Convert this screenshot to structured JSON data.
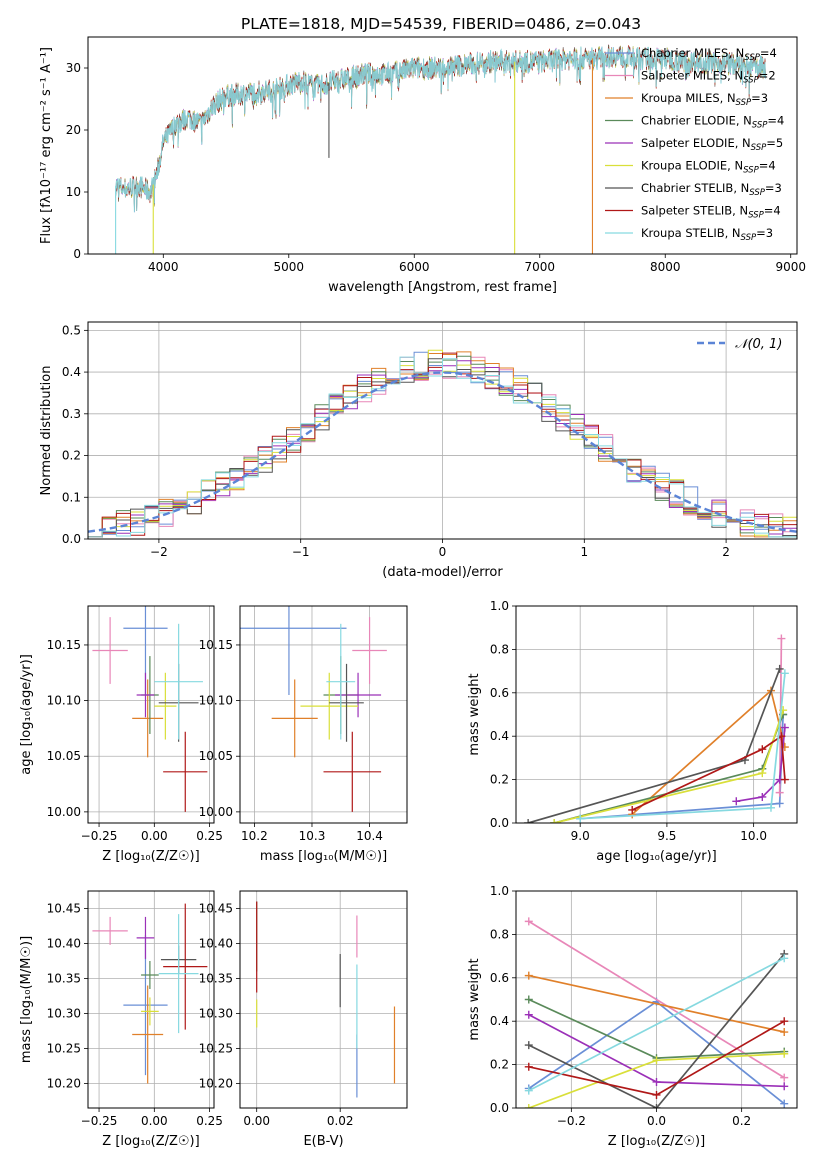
{
  "figure_title": "PLATE=1818, MJD=54539, FIBERID=0486, z=0.043",
  "colors": {
    "Chabrier MILES": "#6a8fd6",
    "Salpeter MILES": "#e887b8",
    "Kroupa MILES": "#e0802a",
    "Chabrier ELODIE": "#5a8a5a",
    "Salpeter ELODIE": "#9b30b8",
    "Kroupa ELODIE": "#d9df3a",
    "Chabrier STELIB": "#555555",
    "Salpeter STELIB": "#b01818",
    "Kroupa STELIB": "#86d9e0",
    "gaussian": "#5b84d6"
  },
  "chart_data": [
    {
      "id": "spectrum",
      "type": "line",
      "xlabel": "wavelength [Angstrom, rest frame]",
      "ylabel": "Flux [fλ10⁻¹⁷ erg cm⁻² s⁻¹ A⁻¹]",
      "xlim": [
        3400,
        9050
      ],
      "ylim": [
        0,
        35
      ],
      "xticks": [
        4000,
        5000,
        6000,
        7000,
        8000,
        9000
      ],
      "yticks": [
        0,
        10,
        20,
        30
      ],
      "grid": false,
      "legend_position": "top-right",
      "legend": [
        {
          "label": "Chabrier MILES, N",
          "sub": "SSP",
          "value": "=4"
        },
        {
          "label": "Salpeter MILES, N",
          "sub": "SSP",
          "value": "=2"
        },
        {
          "label": "Kroupa MILES, N",
          "sub": "SSP",
          "value": "=3"
        },
        {
          "label": "Chabrier ELODIE, N",
          "sub": "SSP",
          "value": "=4"
        },
        {
          "label": "Salpeter ELODIE, N",
          "sub": "SSP",
          "value": "=5"
        },
        {
          "label": "Kroupa ELODIE, N",
          "sub": "SSP",
          "value": "=4"
        },
        {
          "label": "Chabrier STELIB, N",
          "sub": "SSP",
          "value": "=3"
        },
        {
          "label": "Salpeter STELIB, N",
          "sub": "SSP",
          "value": "=4"
        },
        {
          "label": "Kroupa STELIB, N",
          "sub": "SSP",
          "value": "=3"
        }
      ],
      "continuum": {
        "x": [
          3620,
          3700,
          3800,
          3900,
          3950,
          4000,
          4100,
          4200,
          4300,
          4400,
          4500,
          4700,
          4900,
          5100,
          5200,
          5400,
          5600,
          5800,
          6000,
          6200,
          6400,
          6600,
          6800,
          7000,
          7200,
          7400,
          7600,
          7800,
          8000,
          8200,
          8400,
          8600,
          8800
        ],
        "y": [
          11,
          10.5,
          11,
          10,
          13,
          18,
          21,
          22,
          21,
          24,
          25.5,
          26,
          26.5,
          28,
          27,
          28,
          29,
          29,
          30,
          30,
          30.5,
          31,
          31,
          31,
          31.5,
          31.5,
          32,
          31.5,
          31.5,
          31,
          31,
          30.5,
          30
        ]
      },
      "spikes": [
        {
          "x": 3620,
          "y": 0,
          "color": "Kroupa STELIB"
        },
        {
          "x": 3920,
          "y": 0,
          "color": "Kroupa ELODIE"
        },
        {
          "x": 5320,
          "y": 15.5,
          "color": "Chabrier STELIB"
        },
        {
          "x": 6800,
          "y": 0,
          "color": "Kroupa ELODIE"
        },
        {
          "x": 7420,
          "y": 0,
          "color": "Kroupa MILES"
        }
      ]
    },
    {
      "id": "residuals",
      "type": "histogram",
      "xlabel": "(data-model)/error",
      "ylabel": "Normed distribution",
      "xlim": [
        -2.5,
        2.5
      ],
      "ylim": [
        0,
        0.52
      ],
      "xticks": [
        -2,
        -1,
        0,
        1,
        2
      ],
      "yticks": [
        0.0,
        0.1,
        0.2,
        0.3,
        0.4,
        0.5
      ],
      "grid": true,
      "legend_position": "top-right",
      "legend_label": "𝒩(0, 1)",
      "bin_start": -2.5,
      "bin_width": 0.1
    },
    {
      "id": "age_vs_Z",
      "type": "errorbar",
      "xlabel": "Z [log₁₀(Z/Z☉)]",
      "ylabel": "age  [log₁₀(age/yr)]",
      "xlim": [
        -0.3,
        0.27
      ],
      "ylim": [
        9.99,
        10.185
      ],
      "xticks": [
        -0.25,
        0.0,
        0.25
      ],
      "xticklabels": [
        "−0.25",
        "0.00",
        "0.25"
      ],
      "yticks": [
        10.0,
        10.05,
        10.1,
        10.15
      ],
      "grid": true,
      "points": [
        {
          "series": "Chabrier MILES",
          "x": -0.04,
          "xerr": 0.1,
          "y": 10.165,
          "yerr": 0.06
        },
        {
          "series": "Salpeter MILES",
          "x": -0.2,
          "xerr": 0.08,
          "y": 10.145,
          "yerr": 0.03
        },
        {
          "series": "Kroupa MILES",
          "x": -0.03,
          "xerr": 0.07,
          "y": 10.084,
          "yerr": 0.035
        },
        {
          "series": "Chabrier ELODIE",
          "x": -0.02,
          "xerr": 0.04,
          "y": 10.105,
          "yerr": 0.035
        },
        {
          "series": "Salpeter ELODIE",
          "x": -0.04,
          "xerr": 0.04,
          "y": 10.105,
          "yerr": 0.02
        },
        {
          "series": "Kroupa ELODIE",
          "x": 0.05,
          "xerr": 0.05,
          "y": 10.095,
          "yerr": 0.03
        },
        {
          "series": "Chabrier STELIB",
          "x": 0.11,
          "xerr": 0.09,
          "y": 10.098,
          "yerr": 0.035
        },
        {
          "series": "Salpeter STELIB",
          "x": 0.14,
          "xerr": 0.1,
          "y": 10.036,
          "yerr": 0.036
        },
        {
          "series": "Kroupa STELIB",
          "x": 0.11,
          "xerr": 0.11,
          "y": 10.117,
          "yerr": 0.052
        }
      ]
    },
    {
      "id": "age_vs_mass",
      "type": "errorbar",
      "xlabel": "mass [log₁₀(M/M☉)]",
      "ylabel": "",
      "xlim": [
        10.175,
        10.465
      ],
      "ylim": [
        9.99,
        10.185
      ],
      "xticks": [
        10.2,
        10.3,
        10.4
      ],
      "xticklabels": [
        "10.2",
        "10.3",
        "10.4"
      ],
      "yticks": [
        10.0,
        10.05,
        10.1,
        10.15
      ],
      "grid": true,
      "points": [
        {
          "series": "Chabrier MILES",
          "x": 10.26,
          "xerr": 0.1,
          "y": 10.165,
          "yerr": 0.06
        },
        {
          "series": "Salpeter MILES",
          "x": 10.4,
          "xerr": 0.03,
          "y": 10.145,
          "yerr": 0.03
        },
        {
          "series": "Kroupa MILES",
          "x": 10.27,
          "xerr": 0.04,
          "y": 10.084,
          "yerr": 0.035
        },
        {
          "series": "Chabrier ELODIE",
          "x": 10.35,
          "xerr": 0.03,
          "y": 10.105,
          "yerr": 0.035
        },
        {
          "series": "Salpeter ELODIE",
          "x": 10.38,
          "xerr": 0.04,
          "y": 10.105,
          "yerr": 0.02
        },
        {
          "series": "Kroupa ELODIE",
          "x": 10.33,
          "xerr": 0.05,
          "y": 10.095,
          "yerr": 0.03
        },
        {
          "series": "Chabrier STELIB",
          "x": 10.36,
          "xerr": 0.03,
          "y": 10.098,
          "yerr": 0.035
        },
        {
          "series": "Salpeter STELIB",
          "x": 10.37,
          "xerr": 0.05,
          "y": 10.036,
          "yerr": 0.036
        },
        {
          "series": "Kroupa STELIB",
          "x": 10.35,
          "xerr": 0.025,
          "y": 10.117,
          "yerr": 0.052
        }
      ]
    },
    {
      "id": "weight_vs_age",
      "type": "line",
      "xlabel": "age  [log₁₀(age/yr)]",
      "ylabel": "mass weight",
      "xlim": [
        8.63,
        10.25
      ],
      "ylim": [
        0,
        1
      ],
      "xticks": [
        9.0,
        9.5,
        10.0
      ],
      "xticklabels": [
        "9.0",
        "9.5",
        "10.0"
      ],
      "yticks": [
        0.0,
        0.2,
        0.4,
        0.6,
        0.8,
        1.0
      ],
      "grid": true,
      "series": [
        {
          "name": "Chabrier MILES",
          "x": [
            9.0,
            10.15,
            10.17
          ],
          "y": [
            0.02,
            0.09,
            0.5
          ]
        },
        {
          "name": "Salpeter MILES",
          "x": [
            10.15,
            10.16
          ],
          "y": [
            0.14,
            0.85
          ]
        },
        {
          "name": "Kroupa MILES",
          "x": [
            9.3,
            10.1,
            10.18
          ],
          "y": [
            0.04,
            0.61,
            0.35
          ]
        },
        {
          "name": "Chabrier ELODIE",
          "x": [
            8.85,
            10.05,
            10.17
          ],
          "y": [
            0.0,
            0.25,
            0.5
          ]
        },
        {
          "name": "Salpeter ELODIE",
          "x": [
            9.9,
            10.05,
            10.15,
            10.18
          ],
          "y": [
            0.1,
            0.12,
            0.2,
            0.44
          ]
        },
        {
          "name": "Kroupa ELODIE",
          "x": [
            8.85,
            10.05,
            10.17
          ],
          "y": [
            0.0,
            0.23,
            0.52
          ]
        },
        {
          "name": "Chabrier STELIB",
          "x": [
            8.7,
            9.95,
            10.15
          ],
          "y": [
            0.0,
            0.29,
            0.71
          ]
        },
        {
          "name": "Salpeter STELIB",
          "x": [
            9.3,
            10.05,
            10.16,
            10.18
          ],
          "y": [
            0.06,
            0.34,
            0.4,
            0.2
          ]
        },
        {
          "name": "Kroupa STELIB",
          "x": [
            9.0,
            10.1,
            10.18
          ],
          "y": [
            0.02,
            0.07,
            0.69
          ]
        }
      ]
    },
    {
      "id": "mass_vs_Z",
      "type": "errorbar",
      "xlabel": "Z [log₁₀(Z/Z☉)]",
      "ylabel": "mass [log₁₀(M/M☉)]",
      "xlim": [
        -0.3,
        0.27
      ],
      "ylim": [
        10.165,
        10.475
      ],
      "xticks": [
        -0.25,
        0.0,
        0.25
      ],
      "xticklabels": [
        "−0.25",
        "0.00",
        "0.25"
      ],
      "yticks": [
        10.2,
        10.25,
        10.3,
        10.35,
        10.4,
        10.45
      ],
      "grid": true,
      "points": [
        {
          "series": "Chabrier MILES",
          "x": -0.04,
          "xerr": 0.1,
          "y": 10.312,
          "yerr": 0.1
        },
        {
          "series": "Salpeter MILES",
          "x": -0.2,
          "xerr": 0.08,
          "y": 10.418,
          "yerr": 0.02
        },
        {
          "series": "Kroupa MILES",
          "x": -0.03,
          "xerr": 0.07,
          "y": 10.27,
          "yerr": 0.07
        },
        {
          "series": "Chabrier ELODIE",
          "x": -0.02,
          "xerr": 0.04,
          "y": 10.355,
          "yerr": 0.02
        },
        {
          "series": "Salpeter ELODIE",
          "x": -0.04,
          "xerr": 0.04,
          "y": 10.408,
          "yerr": 0.03
        },
        {
          "series": "Kroupa ELODIE",
          "x": -0.02,
          "xerr": 0.04,
          "y": 10.303,
          "yerr": 0.02
        },
        {
          "series": "Chabrier STELIB",
          "x": 0.11,
          "xerr": 0.08,
          "y": 10.377,
          "yerr": 0.02
        },
        {
          "series": "Salpeter STELIB",
          "x": 0.14,
          "xerr": 0.1,
          "y": 10.367,
          "yerr": 0.09
        },
        {
          "series": "Kroupa STELIB",
          "x": 0.11,
          "xerr": 0.09,
          "y": 10.357,
          "yerr": 0.085
        }
      ]
    },
    {
      "id": "mass_vs_ebv",
      "type": "errorbar",
      "xlabel": "E(B-V)",
      "ylabel": "",
      "xlim": [
        -0.004,
        0.036
      ],
      "ylim": [
        10.165,
        10.475
      ],
      "xticks": [
        0.0,
        0.02
      ],
      "xticklabels": [
        "0.00",
        "0.02"
      ],
      "yticks": [
        10.2,
        10.25,
        10.3,
        10.35,
        10.4,
        10.45
      ],
      "grid": true,
      "points": [
        {
          "series": "Chabrier MILES",
          "x": 0.024,
          "xerr": 0,
          "y": 10.225,
          "yerr": 0.045
        },
        {
          "series": "Salpeter MILES",
          "x": 0.024,
          "xerr": 0,
          "y": 10.41,
          "yerr": 0.03
        },
        {
          "series": "Kroupa MILES",
          "x": 0.033,
          "xerr": 0,
          "y": 10.255,
          "yerr": 0.055
        },
        {
          "series": "Chabrier ELODIE",
          "x": 0.0,
          "xerr": 0,
          "y": 10.41,
          "yerr": 0.05
        },
        {
          "series": "Kroupa ELODIE",
          "x": 0.0,
          "xerr": 0,
          "y": 10.3,
          "yerr": 0.02
        },
        {
          "series": "Chabrier STELIB",
          "x": 0.02,
          "xerr": 0,
          "y": 10.347,
          "yerr": 0.038
        },
        {
          "series": "Salpeter STELIB",
          "x": 0.0,
          "xerr": 0,
          "y": 10.395,
          "yerr": 0.065
        },
        {
          "series": "Kroupa STELIB",
          "x": 0.024,
          "xerr": 0,
          "y": 10.31,
          "yerr": 0.06
        }
      ]
    },
    {
      "id": "weight_vs_Z",
      "type": "line",
      "xlabel": "Z [log₁₀(Z/Z☉)]",
      "ylabel": "mass weight",
      "xlim": [
        -0.33,
        0.33
      ],
      "ylim": [
        0,
        1
      ],
      "xticks": [
        -0.2,
        0.0,
        0.2
      ],
      "xticklabels": [
        "−0.2",
        "0.0",
        "0.2"
      ],
      "yticks": [
        0.0,
        0.2,
        0.4,
        0.6,
        0.8,
        1.0
      ],
      "grid": true,
      "series": [
        {
          "name": "Chabrier MILES",
          "x": [
            -0.3,
            0.0,
            0.3
          ],
          "y": [
            0.09,
            0.49,
            0.02
          ]
        },
        {
          "name": "Salpeter MILES",
          "x": [
            -0.3,
            0.3
          ],
          "y": [
            0.86,
            0.14
          ]
        },
        {
          "name": "Kroupa MILES",
          "x": [
            -0.3,
            0.3
          ],
          "y": [
            0.61,
            0.35
          ]
        },
        {
          "name": "Chabrier ELODIE",
          "x": [
            -0.3,
            0.0,
            0.3
          ],
          "y": [
            0.5,
            0.23,
            0.26
          ]
        },
        {
          "name": "Salpeter ELODIE",
          "x": [
            -0.3,
            0.0,
            0.3
          ],
          "y": [
            0.43,
            0.12,
            0.1
          ]
        },
        {
          "name": "Kroupa ELODIE",
          "x": [
            -0.3,
            0.0,
            0.3
          ],
          "y": [
            0.0,
            0.22,
            0.25
          ]
        },
        {
          "name": "Chabrier STELIB",
          "x": [
            -0.3,
            0.0,
            0.3
          ],
          "y": [
            0.29,
            0.0,
            0.71
          ]
        },
        {
          "name": "Salpeter STELIB",
          "x": [
            -0.3,
            0.0,
            0.3
          ],
          "y": [
            0.19,
            0.06,
            0.4
          ]
        },
        {
          "name": "Kroupa STELIB",
          "x": [
            -0.3,
            0.3
          ],
          "y": [
            0.08,
            0.69
          ]
        }
      ]
    }
  ]
}
